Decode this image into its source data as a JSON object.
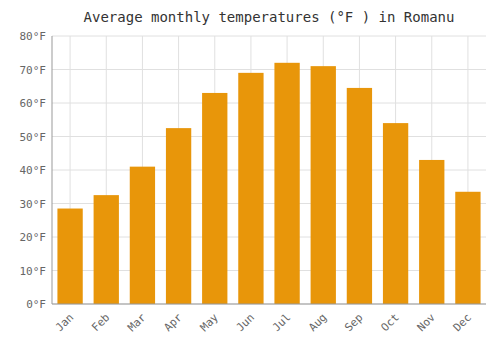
{
  "chart_data": {
    "type": "bar",
    "title": "Average monthly temperatures (°F ) in Romanu",
    "categories": [
      "Jan",
      "Feb",
      "Mar",
      "Apr",
      "May",
      "Jun",
      "Jul",
      "Aug",
      "Sep",
      "Oct",
      "Nov",
      "Dec"
    ],
    "values": [
      28.5,
      32.5,
      41.0,
      52.5,
      63.0,
      69.0,
      72.0,
      71.0,
      64.5,
      54.0,
      43.0,
      33.5
    ],
    "color": "#E8960A",
    "ylim": [
      0,
      80
    ],
    "yticks": [
      {
        "value": 0,
        "label": "0°F"
      },
      {
        "value": 10,
        "label": "10°F"
      },
      {
        "value": 20,
        "label": "20°F"
      },
      {
        "value": 30,
        "label": "30°F"
      },
      {
        "value": 40,
        "label": "40°F"
      },
      {
        "value": 50,
        "label": "50°F"
      },
      {
        "value": 60,
        "label": "60°F"
      },
      {
        "value": 70,
        "label": "70°F"
      },
      {
        "value": 80,
        "label": "80°F"
      }
    ],
    "grid": true
  }
}
